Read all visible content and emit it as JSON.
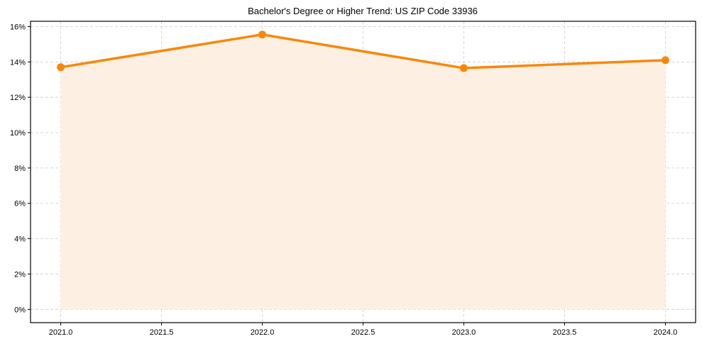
{
  "chart_data": {
    "type": "line",
    "title": "Bachelor's Degree or Higher Trend: US ZIP Code 33936",
    "xlabel": "",
    "ylabel": "",
    "x": [
      2021.0,
      2022.0,
      2023.0,
      2024.0
    ],
    "series": [
      {
        "name": "Bachelor's Degree or Higher",
        "values": [
          13.7,
          15.55,
          13.65,
          14.1
        ],
        "unit": "%",
        "color": "#f7880c",
        "fill_color": "#fdf0e2",
        "marker": "circle",
        "area_fill": true
      }
    ],
    "xlim": [
      2020.85,
      2024.15
    ],
    "ylim": [
      -0.75,
      16.3
    ],
    "x_ticks": [
      2021.0,
      2021.5,
      2022.0,
      2022.5,
      2023.0,
      2023.5,
      2024.0
    ],
    "x_tick_labels": [
      "2021.0",
      "2021.5",
      "2022.0",
      "2022.5",
      "2023.0",
      "2023.5",
      "2024.0"
    ],
    "y_ticks": [
      0,
      2,
      4,
      6,
      8,
      10,
      12,
      14,
      16
    ],
    "y_tick_labels": [
      "0%",
      "2%",
      "4%",
      "6%",
      "8%",
      "10%",
      "12%",
      "14%",
      "16%"
    ],
    "grid": true,
    "grid_style": "dashed",
    "legend": null
  }
}
